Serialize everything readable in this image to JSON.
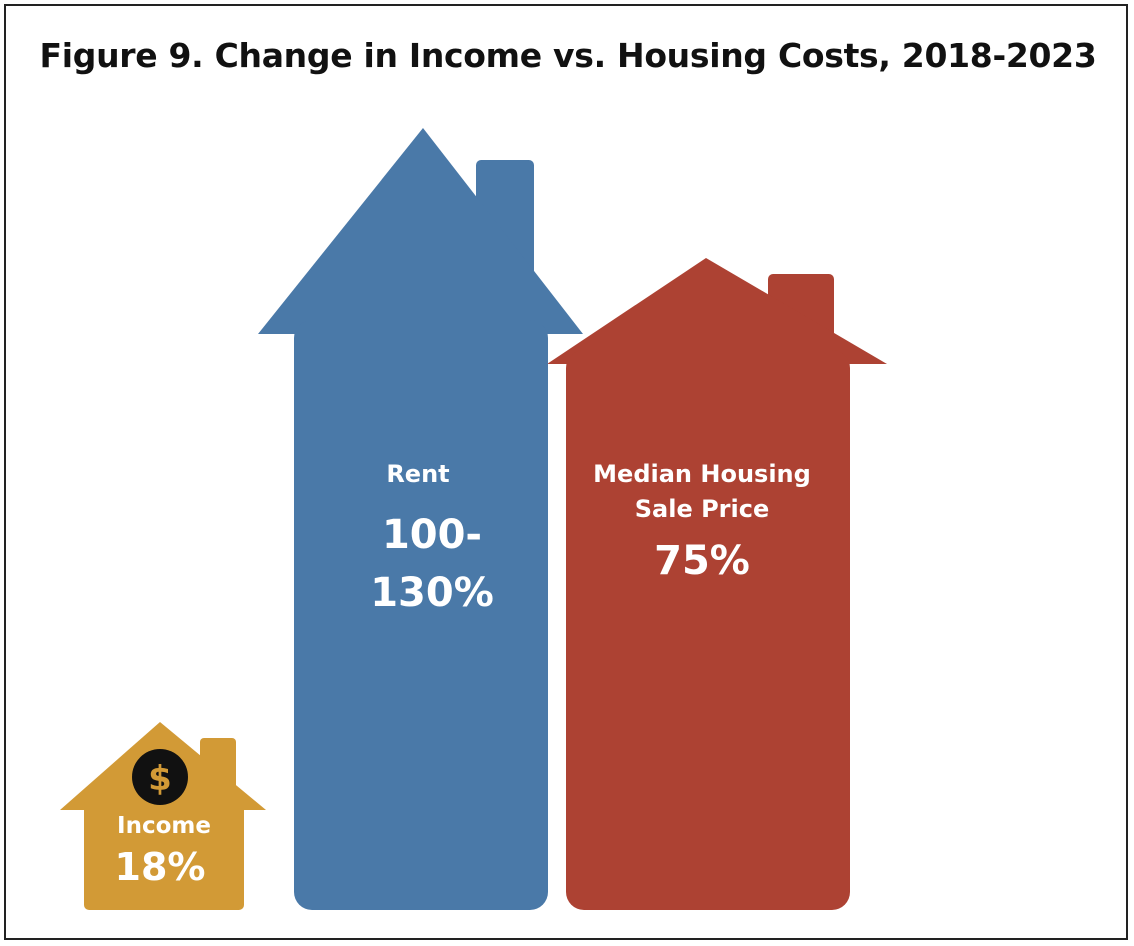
{
  "title": "Figure 9. Change in Income vs. Housing Costs, 2018-2023",
  "colors": {
    "income": "#D29A36",
    "rent": "#4A79A8",
    "sale_price": "#AD4233",
    "coin": "#111111",
    "coin_symbol": "#D29A36"
  },
  "chart_data": {
    "type": "bar",
    "title": "Figure 9. Change in Income vs. Housing Costs, 2018-2023",
    "series": [
      {
        "key": "income",
        "label": "Income",
        "value_label": "18%",
        "value": 18,
        "icon": "dollar-icon"
      },
      {
        "key": "rent",
        "label": "Rent",
        "value_label": "100-130%",
        "value_low": 100,
        "value_high": 130
      },
      {
        "key": "sale_price",
        "label": "Median Housing Sale Price",
        "value_label": "75%",
        "value": 75
      }
    ]
  },
  "labels": {
    "income": "Income",
    "income_value": "18%",
    "rent": "Rent",
    "rent_value_1": "100-",
    "rent_value_2": "130%",
    "sale_1": "Median Housing",
    "sale_2": "Sale Price",
    "sale_value": "75%",
    "dollar": "$"
  }
}
